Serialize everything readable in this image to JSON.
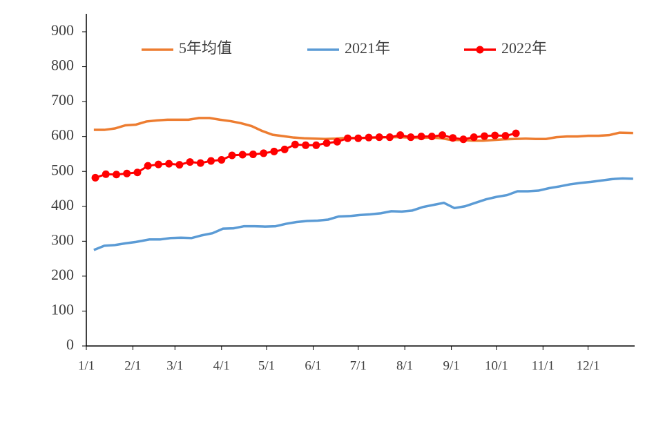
{
  "chart_data": {
    "type": "line",
    "xlim": [
      0,
      365
    ],
    "xticks": [
      {
        "value": 0,
        "label": "1/1"
      },
      {
        "value": 31,
        "label": "2/1"
      },
      {
        "value": 59,
        "label": "3/1"
      },
      {
        "value": 90,
        "label": "4/1"
      },
      {
        "value": 120,
        "label": "5/1"
      },
      {
        "value": 151,
        "label": "6/1"
      },
      {
        "value": 181,
        "label": "7/1"
      },
      {
        "value": 212,
        "label": "8/1"
      },
      {
        "value": 243,
        "label": "9/1"
      },
      {
        "value": 273,
        "label": "10/1"
      },
      {
        "value": 304,
        "label": "11/1"
      },
      {
        "value": 334,
        "label": "12/1"
      }
    ],
    "ylim": [
      0,
      900
    ],
    "yticks": [
      0,
      100,
      200,
      300,
      400,
      500,
      600,
      700,
      800,
      900
    ],
    "legend": "top",
    "series": [
      {
        "name": "5年均值",
        "color": "#ed7d31",
        "markers": false,
        "x": [
          5,
          12,
          19,
          26,
          33,
          40,
          47,
          54,
          61,
          68,
          75,
          82,
          89,
          96,
          103,
          110,
          117,
          124,
          131,
          138,
          145,
          152,
          159,
          166,
          173,
          180,
          187,
          194,
          201,
          208,
          215,
          222,
          229,
          236,
          243,
          250,
          257,
          264,
          271,
          278,
          285,
          292,
          299,
          306,
          313,
          320,
          327,
          334,
          341,
          348,
          355,
          364
        ],
        "values": [
          619,
          619,
          623,
          632,
          634,
          643,
          646,
          648,
          648,
          648,
          653,
          653,
          648,
          644,
          638,
          630,
          616,
          605,
          601,
          597,
          595,
          594,
          593,
          594,
          596,
          596,
          596,
          597,
          598,
          598,
          597,
          596,
          597,
          595,
          590,
          590,
          588,
          588,
          590,
          592,
          593,
          594,
          593,
          593,
          598,
          600,
          600,
          602,
          602,
          604,
          611,
          610
        ]
      },
      {
        "name": "2021年",
        "color": "#5b9bd5",
        "markers": false,
        "x": [
          5,
          12,
          19,
          26,
          33,
          42,
          49,
          56,
          63,
          70,
          77,
          84,
          91,
          98,
          105,
          112,
          119,
          126,
          133,
          140,
          147,
          154,
          161,
          168,
          175,
          182,
          189,
          196,
          203,
          210,
          217,
          224,
          231,
          238,
          245,
          252,
          259,
          266,
          273,
          280,
          287,
          294,
          301,
          308,
          315,
          322,
          329,
          336,
          343,
          350,
          357,
          364
        ],
        "values": [
          275,
          287,
          289,
          294,
          298,
          305,
          305,
          309,
          310,
          309,
          317,
          323,
          336,
          337,
          343,
          343,
          342,
          343,
          350,
          355,
          358,
          359,
          362,
          371,
          372,
          375,
          377,
          380,
          386,
          385,
          388,
          398,
          404,
          410,
          395,
          400,
          410,
          420,
          427,
          432,
          443,
          443,
          445,
          452,
          457,
          463,
          467,
          470,
          474,
          478,
          480,
          479
        ]
      },
      {
        "name": "2022年",
        "color": "#ff0000",
        "markers": true,
        "x": [
          6,
          13,
          20,
          27,
          34,
          41,
          48,
          55,
          62,
          69,
          76,
          83,
          90,
          97,
          104,
          111,
          118,
          125,
          132,
          139,
          146,
          153,
          160,
          167,
          174,
          181,
          188,
          195,
          202,
          209,
          216,
          223,
          230,
          237,
          244,
          251,
          258,
          265,
          272,
          279,
          286
        ],
        "values": [
          482,
          492,
          491,
          494,
          497,
          516,
          520,
          522,
          519,
          527,
          524,
          530,
          533,
          546,
          548,
          549,
          552,
          557,
          563,
          577,
          575,
          575,
          581,
          585,
          595,
          595,
          597,
          598,
          598,
          604,
          598,
          600,
          600,
          604,
          596,
          592,
          598,
          601,
          603,
          602,
          609
        ]
      }
    ]
  }
}
